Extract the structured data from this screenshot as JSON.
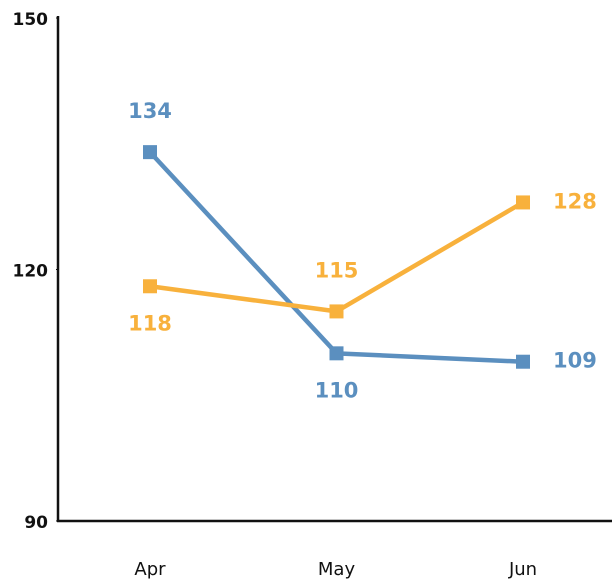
{
  "chart_data": {
    "type": "line",
    "categories": [
      "Apr",
      "May",
      "Jun"
    ],
    "series": [
      {
        "color": "#5b8fbf",
        "values": [
          134,
          110,
          109
        ]
      },
      {
        "color": "#f8b13c",
        "values": [
          118,
          115,
          128
        ]
      }
    ],
    "ylim": [
      90,
      150
    ],
    "yticks": [
      90,
      120,
      150
    ],
    "grid": false
  }
}
